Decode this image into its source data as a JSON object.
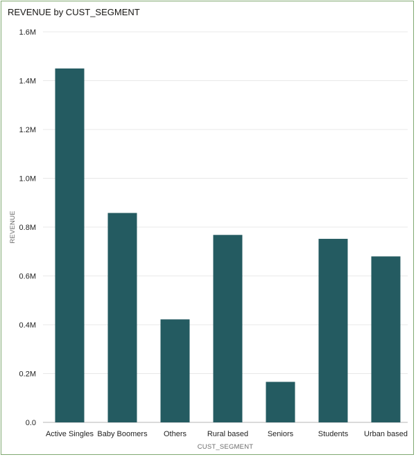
{
  "chart_data": {
    "type": "bar",
    "title": "REVENUE by CUST_SEGMENT",
    "xlabel": "CUST_SEGMENT",
    "ylabel": "REVENUE",
    "categories": [
      "Active Singles",
      "Baby Boomers",
      "Others",
      "Rural based",
      "Seniors",
      "Students",
      "Urban based"
    ],
    "values": [
      1450000,
      858000,
      422000,
      768000,
      166000,
      752000,
      680000
    ],
    "ylim": [
      0,
      1600000
    ],
    "yticks": [
      0,
      200000,
      400000,
      600000,
      800000,
      1000000,
      1200000,
      1400000,
      1600000
    ],
    "ytick_labels": [
      "0.0",
      "0.2M",
      "0.4M",
      "0.6M",
      "0.8M",
      "1.0M",
      "1.2M",
      "1.4M",
      "1.6M"
    ],
    "grid": true,
    "legend": "none",
    "bar_color": "#245b61"
  }
}
